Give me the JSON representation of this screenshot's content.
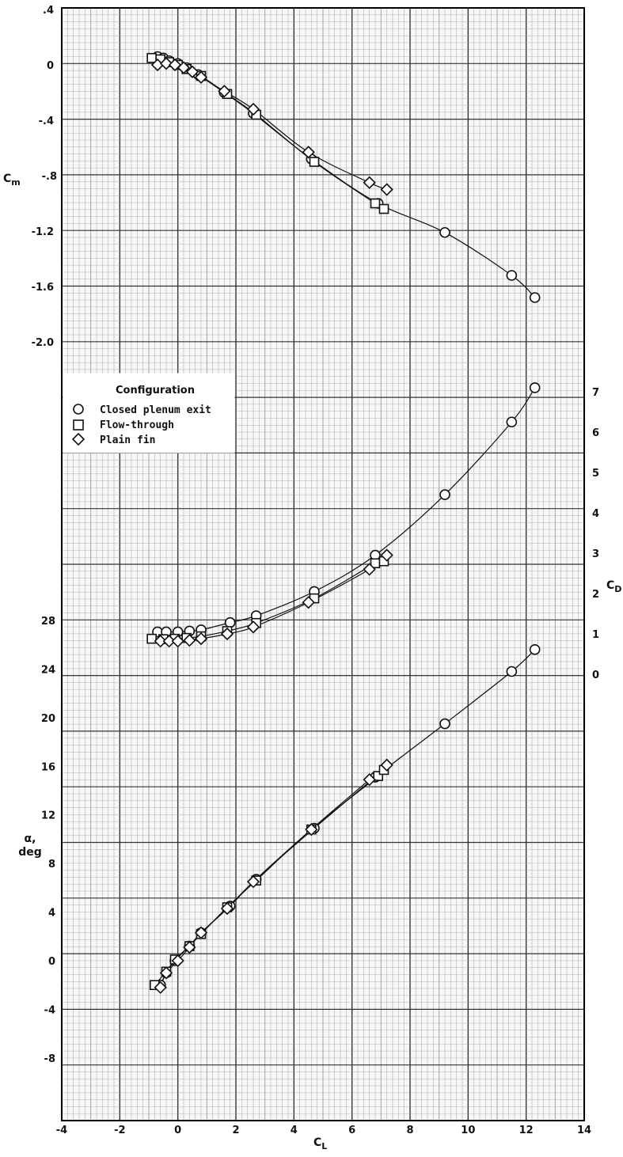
{
  "chart_data": [
    {
      "type": "line",
      "panel": "Cm vs CL",
      "xlabel": "C_L",
      "ylabel": "C_m",
      "xlim": [
        -4,
        14
      ],
      "ylim": [
        -2.0,
        0.4
      ],
      "yticks": [
        "-2.0",
        "-1.6",
        "-1.2",
        "-.8",
        "-.4",
        "0",
        ".4"
      ],
      "grid": true,
      "series": [
        {
          "name": "Closed plenum exit",
          "marker": "circle",
          "x": [
            -0.7,
            -0.5,
            -0.3,
            0.0,
            0.3,
            0.7,
            1.6,
            2.6,
            4.6,
            6.9,
            9.2,
            11.5,
            12.3
          ],
          "y": [
            0.06,
            0.05,
            0.03,
            0.01,
            -0.02,
            -0.07,
            -0.2,
            -0.35,
            -0.68,
            -1.0,
            -1.21,
            -1.52,
            -1.68
          ]
        },
        {
          "name": "Flow-through",
          "marker": "square",
          "x": [
            -0.9,
            -0.6,
            -0.3,
            0.0,
            0.3,
            0.8,
            1.7,
            2.7,
            4.7,
            6.8,
            7.1
          ],
          "y": [
            0.05,
            0.04,
            0.02,
            0.0,
            -0.03,
            -0.08,
            -0.21,
            -0.36,
            -0.7,
            -1.0,
            -1.04
          ]
        },
        {
          "name": "Plain fin",
          "marker": "diamond",
          "x": [
            -0.7,
            -0.4,
            -0.1,
            0.2,
            0.5,
            0.8,
            1.6,
            2.6,
            4.5,
            6.6,
            7.2
          ],
          "y": [
            0.0,
            0.01,
            0.0,
            -0.02,
            -0.05,
            -0.09,
            -0.19,
            -0.32,
            -0.63,
            -0.85,
            -0.9
          ]
        }
      ]
    },
    {
      "type": "line",
      "panel": "CD vs CL",
      "xlabel": "C_L",
      "ylabel": "C_D",
      "xlim": [
        -4,
        14
      ],
      "ylim": [
        0,
        7
      ],
      "yticks": [
        "0",
        "1",
        "2",
        "3",
        "4",
        "5",
        "6",
        "7"
      ],
      "grid": true,
      "series": [
        {
          "name": "Closed plenum exit",
          "marker": "circle",
          "x": [
            -0.7,
            -0.4,
            0.0,
            0.4,
            0.8,
            1.8,
            2.7,
            4.7,
            6.8,
            9.2,
            11.5,
            12.3
          ],
          "y": [
            1.05,
            1.05,
            1.05,
            1.07,
            1.1,
            1.28,
            1.45,
            2.05,
            2.95,
            4.45,
            6.25,
            7.1
          ]
        },
        {
          "name": "Flow-through",
          "marker": "square",
          "x": [
            -0.9,
            -0.5,
            -0.1,
            0.3,
            0.8,
            1.7,
            2.7,
            4.7,
            6.8,
            7.1
          ],
          "y": [
            0.88,
            0.87,
            0.88,
            0.9,
            0.94,
            1.07,
            1.27,
            1.88,
            2.75,
            2.8
          ]
        },
        {
          "name": "Plain fin",
          "marker": "diamond",
          "x": [
            -0.6,
            -0.3,
            0.0,
            0.4,
            0.8,
            1.7,
            2.6,
            4.5,
            6.6,
            7.2
          ],
          "y": [
            0.82,
            0.82,
            0.82,
            0.84,
            0.88,
            1.0,
            1.17,
            1.78,
            2.6,
            2.95
          ]
        }
      ]
    },
    {
      "type": "line",
      "panel": "alpha vs CL",
      "xlabel": "C_L",
      "ylabel": "α, deg",
      "xlim": [
        -4,
        14
      ],
      "ylim": [
        -8,
        28
      ],
      "yticks": [
        "-8",
        "-4",
        "0",
        "4",
        "8",
        "12",
        "16",
        "20",
        "24",
        "28"
      ],
      "grid": true,
      "series": [
        {
          "name": "Closed plenum exit",
          "marker": "circle",
          "x": [
            -0.6,
            -0.4,
            -0.1,
            0.4,
            0.8,
            1.8,
            2.7,
            4.7,
            6.8,
            9.2,
            11.5,
            12.3
          ],
          "y": [
            -2.0,
            -1.0,
            0.0,
            1.2,
            2.3,
            4.5,
            6.7,
            10.9,
            15.1,
            19.5,
            23.8,
            25.6
          ]
        },
        {
          "name": "Flow-through",
          "marker": "square",
          "x": [
            -0.8,
            -0.4,
            -0.1,
            0.4,
            0.8,
            1.7,
            2.7,
            4.6,
            6.9,
            7.1
          ],
          "y": [
            -2.0,
            -0.9,
            0.1,
            1.2,
            2.2,
            4.4,
            6.6,
            10.8,
            15.2,
            15.7
          ]
        },
        {
          "name": "Plain fin",
          "marker": "diamond",
          "x": [
            -0.6,
            -0.4,
            0.0,
            0.4,
            0.8,
            1.7,
            2.6,
            4.6,
            6.6,
            7.2
          ],
          "y": [
            -2.2,
            -1.0,
            0.0,
            1.1,
            2.3,
            4.3,
            6.5,
            10.8,
            14.9,
            16.1
          ]
        }
      ]
    }
  ],
  "xaxis": {
    "label": "C",
    "label_sub": "L",
    "ticks": [
      "-4",
      "-2",
      "0",
      "2",
      "4",
      "6",
      "8",
      "10",
      "12",
      "14"
    ]
  },
  "axis_titles": {
    "cm": "C",
    "cm_sub": "m",
    "cd": "C",
    "cd_sub": "D",
    "alpha_line1": "α,",
    "alpha_line2": "deg"
  },
  "legend": {
    "title": "Configuration",
    "items": [
      {
        "marker": "circle",
        "label": "Closed plenum exit"
      },
      {
        "marker": "square",
        "label": "Flow-through"
      },
      {
        "marker": "diamond",
        "label": "Plain fin"
      }
    ]
  },
  "colors": {
    "background": "#ffffff",
    "plot_bg": "#f7f7f7",
    "major_grid": "#333333",
    "minor_grid": "#9a9a9a",
    "line": "#111111"
  }
}
